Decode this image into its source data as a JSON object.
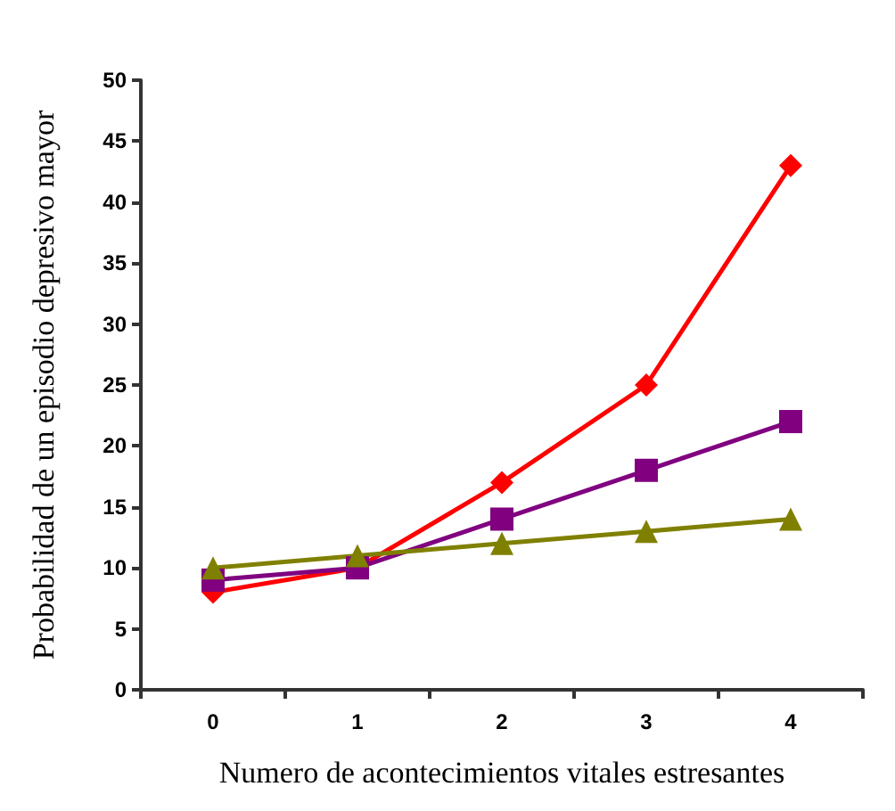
{
  "chart_data": {
    "type": "line",
    "xlabel": "Numero de acontecimientos vitales estresantes",
    "ylabel": "Probabilidad de un episodio depresivo mayor",
    "categories": [
      "0",
      "1",
      "2",
      "3",
      "4"
    ],
    "series": [
      {
        "color": "#ff0000",
        "marker": "diamond",
        "values": [
          8,
          10,
          17,
          25,
          43
        ]
      },
      {
        "color": "#800080",
        "marker": "square",
        "values": [
          9,
          10,
          14,
          18,
          22
        ]
      },
      {
        "color": "#808000",
        "marker": "triangle",
        "values": [
          10,
          11,
          12,
          13,
          14
        ]
      }
    ],
    "ylim": [
      0,
      50
    ],
    "yticks": [
      0,
      5,
      10,
      15,
      20,
      25,
      30,
      35,
      40,
      45,
      50
    ],
    "grid": false
  }
}
